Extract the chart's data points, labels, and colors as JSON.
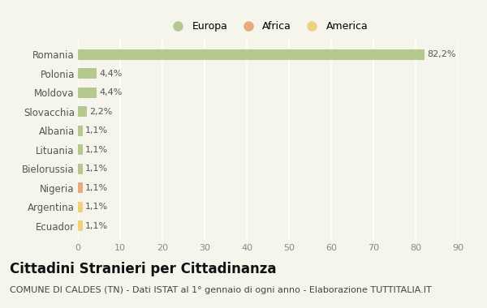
{
  "countries": [
    "Romania",
    "Polonia",
    "Moldova",
    "Slovacchia",
    "Albania",
    "Lituania",
    "Bielorussia",
    "Nigeria",
    "Argentina",
    "Ecuador"
  ],
  "values": [
    82.2,
    4.4,
    4.4,
    2.2,
    1.1,
    1.1,
    1.1,
    1.1,
    1.1,
    1.1
  ],
  "labels": [
    "82,2%",
    "4,4%",
    "4,4%",
    "2,2%",
    "1,1%",
    "1,1%",
    "1,1%",
    "1,1%",
    "1,1%",
    "1,1%"
  ],
  "continents": [
    "Europa",
    "Europa",
    "Europa",
    "Europa",
    "Europa",
    "Europa",
    "Europa",
    "Africa",
    "America",
    "America"
  ],
  "colors": {
    "Europa": "#b5c98e",
    "Africa": "#e8a97e",
    "America": "#f0d080"
  },
  "legend_items": [
    "Europa",
    "Africa",
    "America"
  ],
  "legend_colors": [
    "#b5c98e",
    "#e8a97e",
    "#f0d080"
  ],
  "xlim": [
    0,
    90
  ],
  "xticks": [
    0,
    10,
    20,
    30,
    40,
    50,
    60,
    70,
    80,
    90
  ],
  "title": "Cittadini Stranieri per Cittadinanza",
  "subtitle": "COMUNE DI CALDES (TN) - Dati ISTAT al 1° gennaio di ogni anno - Elaborazione TUTTITALIA.IT",
  "background_color": "#f5f5eb",
  "grid_color": "#ffffff",
  "bar_height": 0.55,
  "title_fontsize": 12,
  "subtitle_fontsize": 8
}
